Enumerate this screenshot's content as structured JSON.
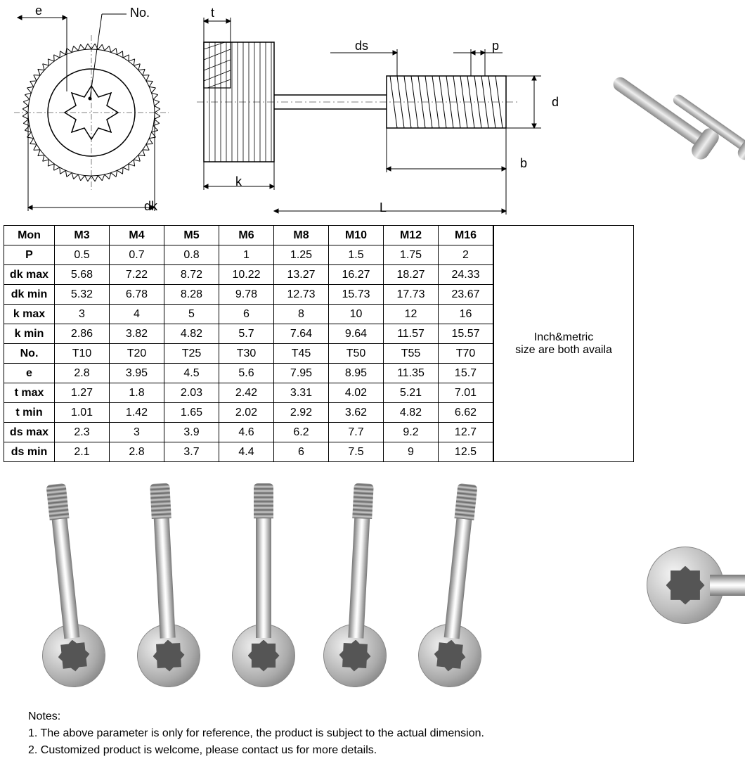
{
  "diagram": {
    "labels": {
      "e": "e",
      "no": "No.",
      "t": "t",
      "dk": "dk",
      "k": "k",
      "L": "L",
      "ds": "ds",
      "p": "p",
      "d": "d",
      "b": "b"
    },
    "colors": {
      "line": "#000000",
      "hatch": "#000000",
      "bg": "#ffffff"
    }
  },
  "spec_table": {
    "header_label": "Mon",
    "columns": [
      "M3",
      "M4",
      "M5",
      "M6",
      "M8",
      "M10",
      "M12",
      "M16"
    ],
    "rows": [
      {
        "label": "P",
        "values": [
          "0.5",
          "0.7",
          "0.8",
          "1",
          "1.25",
          "1.5",
          "1.75",
          "2"
        ]
      },
      {
        "label": "dk max",
        "values": [
          "5.68",
          "7.22",
          "8.72",
          "10.22",
          "13.27",
          "16.27",
          "18.27",
          "24.33"
        ]
      },
      {
        "label": "dk min",
        "values": [
          "5.32",
          "6.78",
          "8.28",
          "9.78",
          "12.73",
          "15.73",
          "17.73",
          "23.67"
        ]
      },
      {
        "label": "k max",
        "values": [
          "3",
          "4",
          "5",
          "6",
          "8",
          "10",
          "12",
          "16"
        ]
      },
      {
        "label": "k min",
        "values": [
          "2.86",
          "3.82",
          "4.82",
          "5.7",
          "7.64",
          "9.64",
          "11.57",
          "15.57"
        ]
      },
      {
        "label": "No.",
        "values": [
          "T10",
          "T20",
          "T25",
          "T30",
          "T45",
          "T50",
          "T55",
          "T70"
        ]
      },
      {
        "label": "e",
        "values": [
          "2.8",
          "3.95",
          "4.5",
          "5.6",
          "7.95",
          "8.95",
          "11.35",
          "15.7"
        ]
      },
      {
        "label": "t max",
        "values": [
          "1.27",
          "1.8",
          "2.03",
          "2.42",
          "3.31",
          "4.02",
          "5.21",
          "7.01"
        ]
      },
      {
        "label": "t min",
        "values": [
          "1.01",
          "1.42",
          "1.65",
          "2.02",
          "2.92",
          "3.62",
          "4.82",
          "6.62"
        ]
      },
      {
        "label": "ds max",
        "values": [
          "2.3",
          "3",
          "3.9",
          "4.6",
          "6.2",
          "7.7",
          "9.2",
          "12.7"
        ]
      },
      {
        "label": "ds min",
        "values": [
          "2.1",
          "2.8",
          "3.7",
          "4.4",
          "6",
          "7.5",
          "9",
          "12.5"
        ]
      }
    ],
    "font_size": 16,
    "border_color": "#000000",
    "cell_bg": "#ffffff"
  },
  "side_note": {
    "line1": "Inch&metric",
    "line2": "size are both availa"
  },
  "notes": {
    "title": "Notes:",
    "items": [
      "1. The above parameter is only for reference, the product is subject to the actual dimension.",
      "2. Customized product is welcome, please contact us for more details."
    ]
  },
  "photos": {
    "screw_color_light": "#e8e8e8",
    "screw_color_dark": "#888888",
    "count_standing": 5
  }
}
